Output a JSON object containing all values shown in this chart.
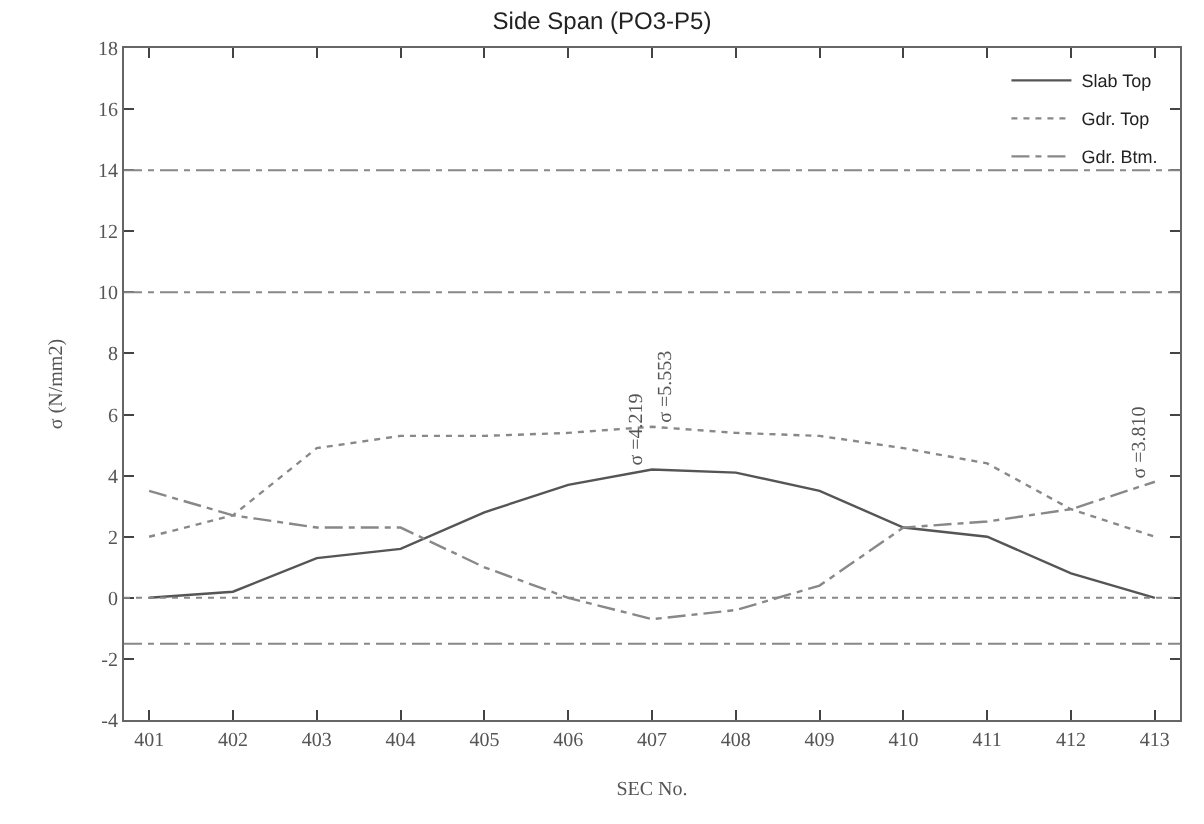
{
  "chart_data": {
    "type": "line",
    "title": "Side Span (PO3-P5)",
    "xlabel": "SEC No.",
    "ylabel": "σ (N/mm2)",
    "categories": [
      "401",
      "402",
      "403",
      "404",
      "405",
      "406",
      "407",
      "408",
      "409",
      "410",
      "411",
      "412",
      "413"
    ],
    "ylim": [
      -4,
      18
    ],
    "yticks": [
      -4,
      -2,
      0,
      2,
      4,
      6,
      8,
      10,
      12,
      14,
      16,
      18
    ],
    "series": [
      {
        "name": "Slab Top",
        "color": "#555555",
        "line_style": "solid",
        "values": [
          0,
          0.2,
          1.3,
          1.6,
          2.8,
          3.7,
          4.2,
          4.1,
          3.5,
          2.3,
          2.0,
          0.8,
          0
        ]
      },
      {
        "name": "Gdr. Top",
        "color": "#888888",
        "line_style": "dotted",
        "values": [
          2.0,
          2.7,
          4.9,
          5.3,
          5.3,
          5.4,
          5.6,
          5.4,
          5.3,
          4.9,
          4.4,
          2.9,
          2.0
        ]
      },
      {
        "name": "Gdr. Btm.",
        "color": "#888888",
        "line_style": "dashdot",
        "values": [
          3.5,
          2.7,
          2.3,
          2.3,
          1.0,
          0,
          -0.7,
          -0.4,
          0.4,
          2.3,
          2.5,
          2.9,
          3.8
        ]
      }
    ],
    "ref_lines": [
      {
        "axis": "y",
        "value": 14,
        "color": "#888888",
        "line_style": "dashdot"
      },
      {
        "axis": "y",
        "value": 10,
        "color": "#888888",
        "line_style": "dashdot"
      },
      {
        "axis": "y",
        "value": 0,
        "color": "#888888",
        "line_style": "dotted"
      },
      {
        "axis": "y",
        "value": -1.5,
        "color": "#888888",
        "line_style": "dashdot"
      }
    ],
    "annotations": [
      {
        "text": "σ =4.219",
        "x": "407",
        "y": 4.2
      },
      {
        "text": "σ =5.553",
        "x": "407",
        "y": 5.6
      },
      {
        "text": "σ =3.810",
        "x": "413",
        "y": 3.8
      }
    ],
    "legend": "top right",
    "marker": "none"
  }
}
